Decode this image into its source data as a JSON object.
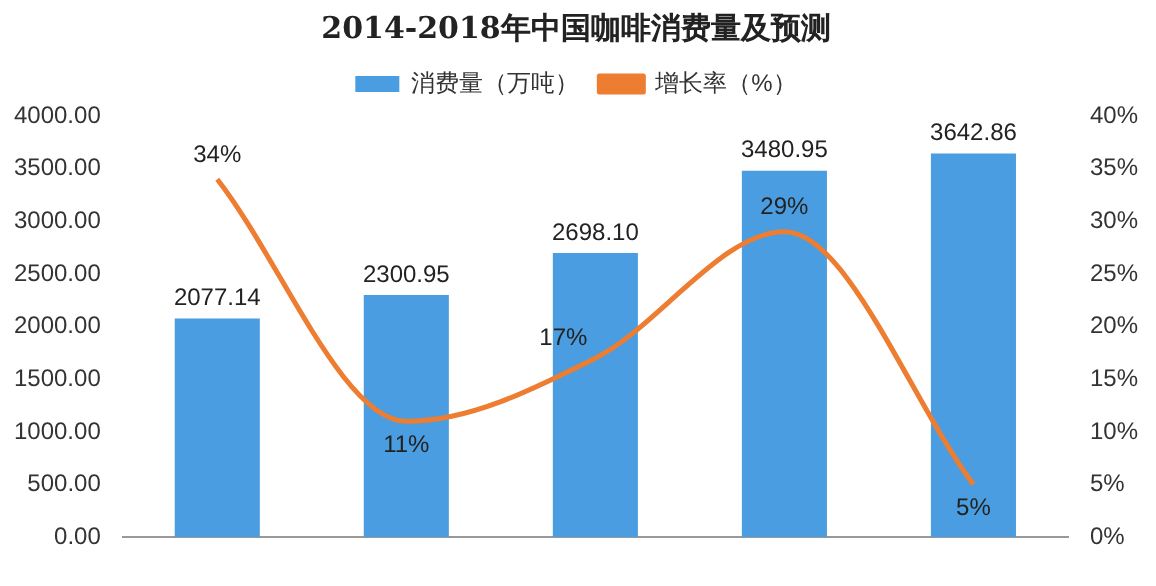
{
  "chart_data": {
    "type": "bar",
    "title": "2014-2018年中国咖啡消费量及预测",
    "categories": [
      null,
      null,
      null,
      null,
      null
    ],
    "series": [
      {
        "name": "消费量（万吨）",
        "color": "#4a9de0",
        "values": [
          2077.14,
          2300.95,
          2698.1,
          3480.95,
          3642.86
        ],
        "value_labels": [
          "2077.14",
          "2300.95",
          "2698.10",
          "3480.95",
          "3642.86"
        ]
      },
      {
        "name": "增长率（%）",
        "type": "line",
        "axis": "y2",
        "color": "#ed7d31",
        "values": [
          34,
          11,
          17,
          29,
          5
        ],
        "value_labels": [
          "34%",
          "11%",
          "17%",
          "29%",
          "5%"
        ]
      }
    ],
    "ylim": [
      0,
      4000
    ],
    "yticks": [
      {
        "value": 0,
        "label": "0.00"
      },
      {
        "value": 500,
        "label": "500.00"
      },
      {
        "value": 1000,
        "label": "1000.00"
      },
      {
        "value": 1500,
        "label": "1500.00"
      },
      {
        "value": 2000,
        "label": "2000.00"
      },
      {
        "value": 2500,
        "label": "2500.00"
      },
      {
        "value": 3000,
        "label": "3000.00"
      },
      {
        "value": 3500,
        "label": "3500.00"
      },
      {
        "value": 4000,
        "label": "4000.00"
      }
    ],
    "y2lim": [
      0,
      40
    ],
    "y2ticks": [
      {
        "value": 0,
        "label": "0%"
      },
      {
        "value": 5,
        "label": "5%"
      },
      {
        "value": 10,
        "label": "10%"
      },
      {
        "value": 15,
        "label": "15%"
      },
      {
        "value": 20,
        "label": "20%"
      },
      {
        "value": 25,
        "label": "25%"
      },
      {
        "value": 30,
        "label": "30%"
      },
      {
        "value": 35,
        "label": "35%"
      },
      {
        "value": 40,
        "label": "40%"
      }
    ],
    "legend": "top",
    "marker": "none",
    "line_style": "solid"
  }
}
